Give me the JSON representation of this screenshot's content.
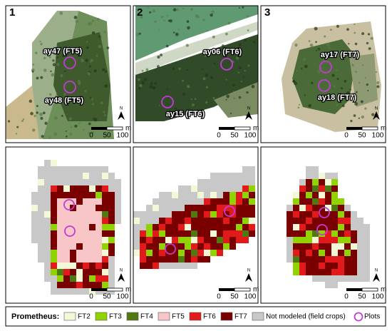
{
  "panels": [
    {
      "number": "1",
      "plots": [
        "ay47 (FT5)",
        "ay48 (FT5)"
      ]
    },
    {
      "number": "2",
      "plots": [
        "ay06 (FT6)",
        "ay15 (FT6)"
      ]
    },
    {
      "number": "3",
      "plots": [
        "ay17 (FT7)",
        "ay18 (FT7)"
      ]
    }
  ],
  "scale_bar": {
    "labels": [
      "0",
      "50",
      "100"
    ],
    "unit": "m"
  },
  "north": "N",
  "legend": {
    "title": "Prometheus:",
    "items": [
      {
        "label": "FT2",
        "color": "#f4f8d6"
      },
      {
        "label": "FT3",
        "color": "#8fd400"
      },
      {
        "label": "FT4",
        "color": "#4f7a10"
      },
      {
        "label": "FT5",
        "color": "#f8c6c6"
      },
      {
        "label": "FT6",
        "color": "#e31a1c"
      },
      {
        "label": "FT7",
        "color": "#7a0000"
      },
      {
        "label": "Not modeled (field crops)",
        "color": "#c8c8c8"
      }
    ],
    "plots": "Plots"
  }
}
